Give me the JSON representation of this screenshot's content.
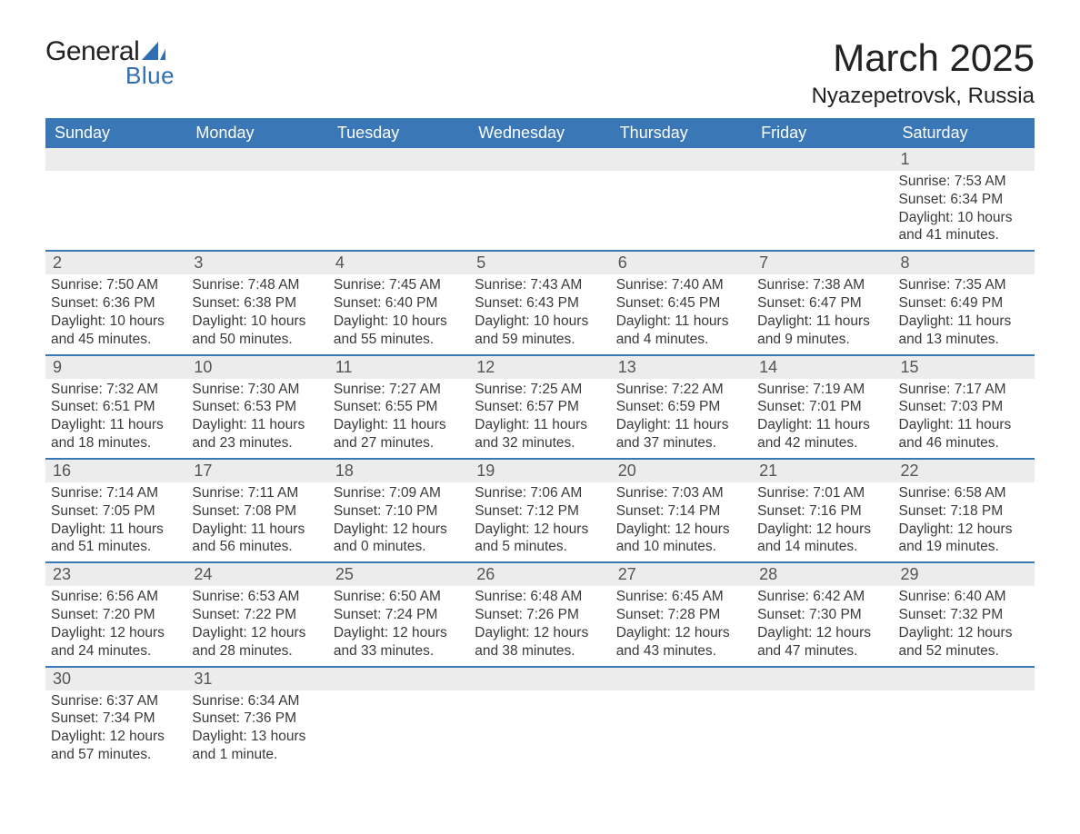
{
  "logo": {
    "word1": "General",
    "word2": "Blue",
    "word1_color": "#222222",
    "word2_color": "#2f6eb0",
    "sail_color": "#2f6eb0"
  },
  "title": {
    "month_year": "March 2025",
    "location": "Nyazepetrovsk, Russia",
    "month_fontsize": 42,
    "location_fontsize": 24,
    "text_color": "#222222"
  },
  "calendar": {
    "type": "table",
    "header_bg": "#3a77b7",
    "header_text_color": "#ffffff",
    "separator_color": "#3a77b7",
    "daynum_bg": "#ececec",
    "body_text_color": "#3a3a3a",
    "columns": [
      "Sunday",
      "Monday",
      "Tuesday",
      "Wednesday",
      "Thursday",
      "Friday",
      "Saturday"
    ],
    "weeks": [
      [
        null,
        null,
        null,
        null,
        null,
        null,
        {
          "d": "1",
          "sunrise": "7:53 AM",
          "sunset": "6:34 PM",
          "dl": "10 hours and 41 minutes."
        }
      ],
      [
        {
          "d": "2",
          "sunrise": "7:50 AM",
          "sunset": "6:36 PM",
          "dl": "10 hours and 45 minutes."
        },
        {
          "d": "3",
          "sunrise": "7:48 AM",
          "sunset": "6:38 PM",
          "dl": "10 hours and 50 minutes."
        },
        {
          "d": "4",
          "sunrise": "7:45 AM",
          "sunset": "6:40 PM",
          "dl": "10 hours and 55 minutes."
        },
        {
          "d": "5",
          "sunrise": "7:43 AM",
          "sunset": "6:43 PM",
          "dl": "10 hours and 59 minutes."
        },
        {
          "d": "6",
          "sunrise": "7:40 AM",
          "sunset": "6:45 PM",
          "dl": "11 hours and 4 minutes."
        },
        {
          "d": "7",
          "sunrise": "7:38 AM",
          "sunset": "6:47 PM",
          "dl": "11 hours and 9 minutes."
        },
        {
          "d": "8",
          "sunrise": "7:35 AM",
          "sunset": "6:49 PM",
          "dl": "11 hours and 13 minutes."
        }
      ],
      [
        {
          "d": "9",
          "sunrise": "7:32 AM",
          "sunset": "6:51 PM",
          "dl": "11 hours and 18 minutes."
        },
        {
          "d": "10",
          "sunrise": "7:30 AM",
          "sunset": "6:53 PM",
          "dl": "11 hours and 23 minutes."
        },
        {
          "d": "11",
          "sunrise": "7:27 AM",
          "sunset": "6:55 PM",
          "dl": "11 hours and 27 minutes."
        },
        {
          "d": "12",
          "sunrise": "7:25 AM",
          "sunset": "6:57 PM",
          "dl": "11 hours and 32 minutes."
        },
        {
          "d": "13",
          "sunrise": "7:22 AM",
          "sunset": "6:59 PM",
          "dl": "11 hours and 37 minutes."
        },
        {
          "d": "14",
          "sunrise": "7:19 AM",
          "sunset": "7:01 PM",
          "dl": "11 hours and 42 minutes."
        },
        {
          "d": "15",
          "sunrise": "7:17 AM",
          "sunset": "7:03 PM",
          "dl": "11 hours and 46 minutes."
        }
      ],
      [
        {
          "d": "16",
          "sunrise": "7:14 AM",
          "sunset": "7:05 PM",
          "dl": "11 hours and 51 minutes."
        },
        {
          "d": "17",
          "sunrise": "7:11 AM",
          "sunset": "7:08 PM",
          "dl": "11 hours and 56 minutes."
        },
        {
          "d": "18",
          "sunrise": "7:09 AM",
          "sunset": "7:10 PM",
          "dl": "12 hours and 0 minutes."
        },
        {
          "d": "19",
          "sunrise": "7:06 AM",
          "sunset": "7:12 PM",
          "dl": "12 hours and 5 minutes."
        },
        {
          "d": "20",
          "sunrise": "7:03 AM",
          "sunset": "7:14 PM",
          "dl": "12 hours and 10 minutes."
        },
        {
          "d": "21",
          "sunrise": "7:01 AM",
          "sunset": "7:16 PM",
          "dl": "12 hours and 14 minutes."
        },
        {
          "d": "22",
          "sunrise": "6:58 AM",
          "sunset": "7:18 PM",
          "dl": "12 hours and 19 minutes."
        }
      ],
      [
        {
          "d": "23",
          "sunrise": "6:56 AM",
          "sunset": "7:20 PM",
          "dl": "12 hours and 24 minutes."
        },
        {
          "d": "24",
          "sunrise": "6:53 AM",
          "sunset": "7:22 PM",
          "dl": "12 hours and 28 minutes."
        },
        {
          "d": "25",
          "sunrise": "6:50 AM",
          "sunset": "7:24 PM",
          "dl": "12 hours and 33 minutes."
        },
        {
          "d": "26",
          "sunrise": "6:48 AM",
          "sunset": "7:26 PM",
          "dl": "12 hours and 38 minutes."
        },
        {
          "d": "27",
          "sunrise": "6:45 AM",
          "sunset": "7:28 PM",
          "dl": "12 hours and 43 minutes."
        },
        {
          "d": "28",
          "sunrise": "6:42 AM",
          "sunset": "7:30 PM",
          "dl": "12 hours and 47 minutes."
        },
        {
          "d": "29",
          "sunrise": "6:40 AM",
          "sunset": "7:32 PM",
          "dl": "12 hours and 52 minutes."
        }
      ],
      [
        {
          "d": "30",
          "sunrise": "6:37 AM",
          "sunset": "7:34 PM",
          "dl": "12 hours and 57 minutes."
        },
        {
          "d": "31",
          "sunrise": "6:34 AM",
          "sunset": "7:36 PM",
          "dl": "13 hours and 1 minute."
        },
        null,
        null,
        null,
        null,
        null
      ]
    ],
    "labels": {
      "sunrise_prefix": "Sunrise: ",
      "sunset_prefix": "Sunset: ",
      "daylight_prefix": "Daylight: "
    }
  }
}
